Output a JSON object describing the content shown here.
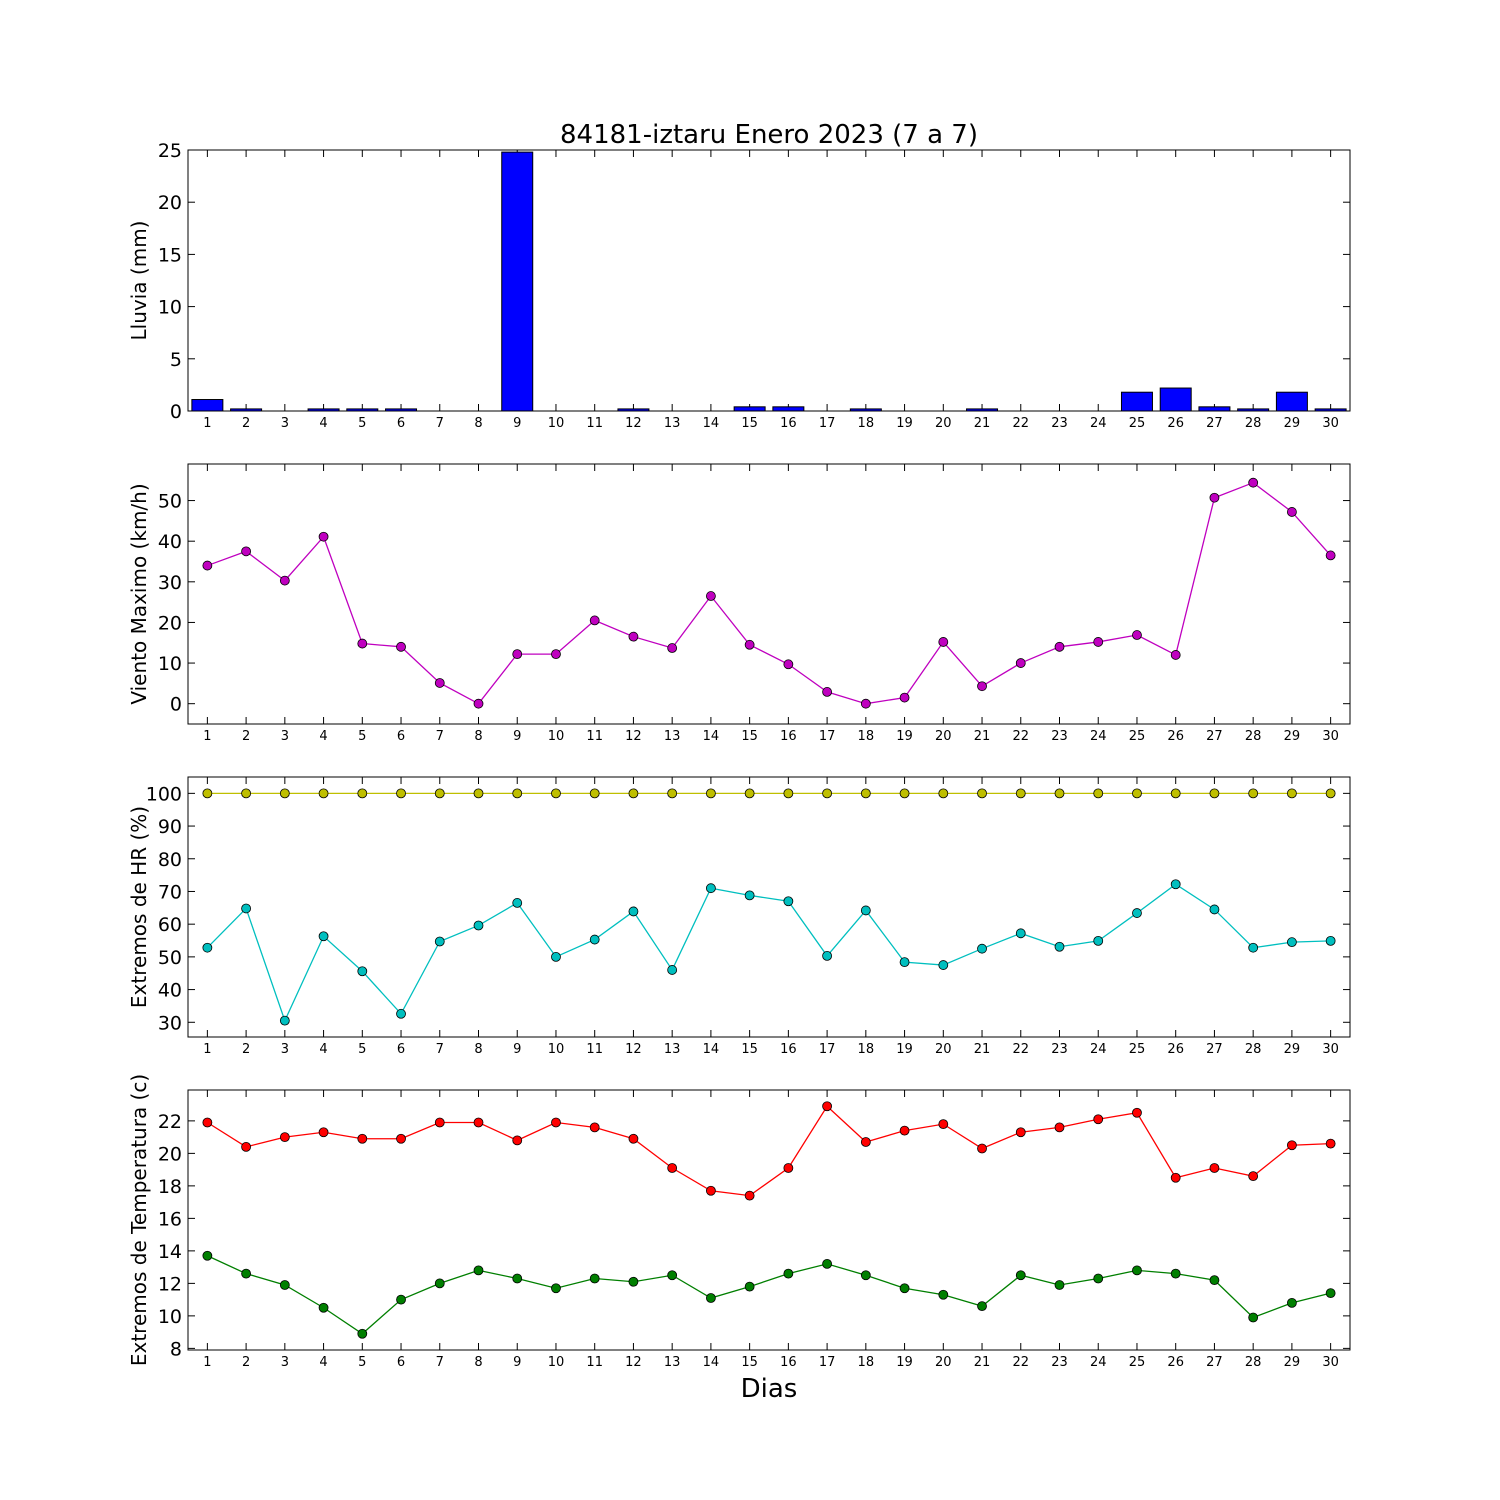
{
  "title": "84181-iztaru Enero 2023  (7 a 7)",
  "xlabel": "Dias",
  "chart_data": [
    {
      "type": "bar",
      "title": "84181-iztaru Enero 2023  (7 a 7)",
      "ylabel": "Lluvia (mm)",
      "xlabel": "",
      "x": [
        1,
        2,
        3,
        4,
        5,
        6,
        7,
        8,
        9,
        10,
        11,
        12,
        13,
        14,
        15,
        16,
        17,
        18,
        19,
        20,
        21,
        22,
        23,
        24,
        25,
        26,
        27,
        28,
        29,
        30
      ],
      "ylim": [
        0,
        25
      ],
      "yticks": [
        0,
        5,
        10,
        15,
        20,
        25
      ],
      "colors": {
        "bar": "#0000ff"
      },
      "series": [
        {
          "values": [
            1.1,
            0.2,
            0,
            0.2,
            0.2,
            0.2,
            0,
            0,
            24.8,
            0,
            0,
            0.2,
            0,
            0,
            0.4,
            0.4,
            0,
            0.2,
            0,
            0,
            0.2,
            0,
            0,
            0,
            1.8,
            2.2,
            0.4,
            0.2,
            1.8,
            0.2
          ]
        }
      ]
    },
    {
      "type": "line",
      "ylabel": "Viento Maximo (km/h)",
      "xlabel": "",
      "x": [
        1,
        2,
        3,
        4,
        5,
        6,
        7,
        8,
        9,
        10,
        11,
        12,
        13,
        14,
        15,
        16,
        17,
        18,
        19,
        20,
        21,
        22,
        23,
        24,
        25,
        26,
        27,
        28,
        29,
        30
      ],
      "ylim": [
        -5,
        59
      ],
      "yticks": [
        0,
        10,
        20,
        30,
        40,
        50
      ],
      "colors": {
        "line": "#bf00bf"
      },
      "series": [
        {
          "values": [
            34,
            37.5,
            30.3,
            41.1,
            14.8,
            14,
            5.1,
            0,
            12.2,
            12.2,
            20.5,
            16.5,
            13.7,
            26.5,
            14.5,
            9.7,
            2.9,
            0,
            1.5,
            15.2,
            4.3,
            10,
            14,
            15.2,
            16.9,
            12,
            50.7,
            54.4,
            47.2,
            36.5
          ]
        }
      ]
    },
    {
      "type": "line",
      "ylabel": "Extremos de HR (%)",
      "xlabel": "",
      "x": [
        1,
        2,
        3,
        4,
        5,
        6,
        7,
        8,
        9,
        10,
        11,
        12,
        13,
        14,
        15,
        16,
        17,
        18,
        19,
        20,
        21,
        22,
        23,
        24,
        25,
        26,
        27,
        28,
        29,
        30
      ],
      "ylim": [
        25.5,
        105
      ],
      "yticks": [
        30,
        40,
        50,
        60,
        70,
        80,
        90,
        100
      ],
      "colors": {
        "max": "#bfbf00",
        "min": "#00bfbf"
      },
      "series": [
        {
          "values": [
            100,
            100,
            100,
            100,
            100,
            100,
            100,
            100,
            100,
            100,
            100,
            100,
            100,
            100,
            100,
            100,
            100,
            100,
            100,
            100,
            100,
            100,
            100,
            100,
            100,
            100,
            100,
            100,
            100,
            100
          ]
        },
        {
          "values": [
            52.8,
            64.8,
            30.5,
            56.3,
            45.6,
            32.6,
            54.7,
            59.6,
            66.5,
            50,
            55.3,
            63.9,
            46,
            71,
            68.8,
            67,
            50.3,
            64.2,
            48.4,
            47.5,
            52.5,
            57.2,
            53.1,
            54.9,
            63.4,
            72.2,
            64.5,
            52.8,
            54.5,
            54.9
          ]
        }
      ]
    },
    {
      "type": "line",
      "ylabel": "Extremos de Temperatura (c)",
      "xlabel": "Dias",
      "x": [
        1,
        2,
        3,
        4,
        5,
        6,
        7,
        8,
        9,
        10,
        11,
        12,
        13,
        14,
        15,
        16,
        17,
        18,
        19,
        20,
        21,
        22,
        23,
        24,
        25,
        26,
        27,
        28,
        29,
        30
      ],
      "ylim": [
        7.9,
        23.9
      ],
      "yticks": [
        8,
        10,
        12,
        14,
        16,
        18,
        20,
        22
      ],
      "colors": {
        "max": "#ff0000",
        "min": "#007f00"
      },
      "series": [
        {
          "values": [
            21.9,
            20.4,
            21,
            21.3,
            20.9,
            20.9,
            21.9,
            21.9,
            20.8,
            21.9,
            21.6,
            20.9,
            19.1,
            17.7,
            17.4,
            19.1,
            22.9,
            20.7,
            21.4,
            21.8,
            20.3,
            21.3,
            21.6,
            22.1,
            22.5,
            18.5,
            19.1,
            18.6,
            20.5,
            20.6
          ]
        },
        {
          "values": [
            13.7,
            12.6,
            11.9,
            10.5,
            8.9,
            11,
            12,
            12.8,
            12.3,
            11.7,
            12.3,
            12.1,
            12.5,
            11.1,
            11.8,
            12.6,
            13.2,
            12.5,
            11.7,
            11.3,
            10.6,
            12.5,
            11.9,
            12.3,
            12.8,
            12.6,
            12.2,
            9.9,
            10.8,
            11.4
          ]
        }
      ]
    }
  ]
}
